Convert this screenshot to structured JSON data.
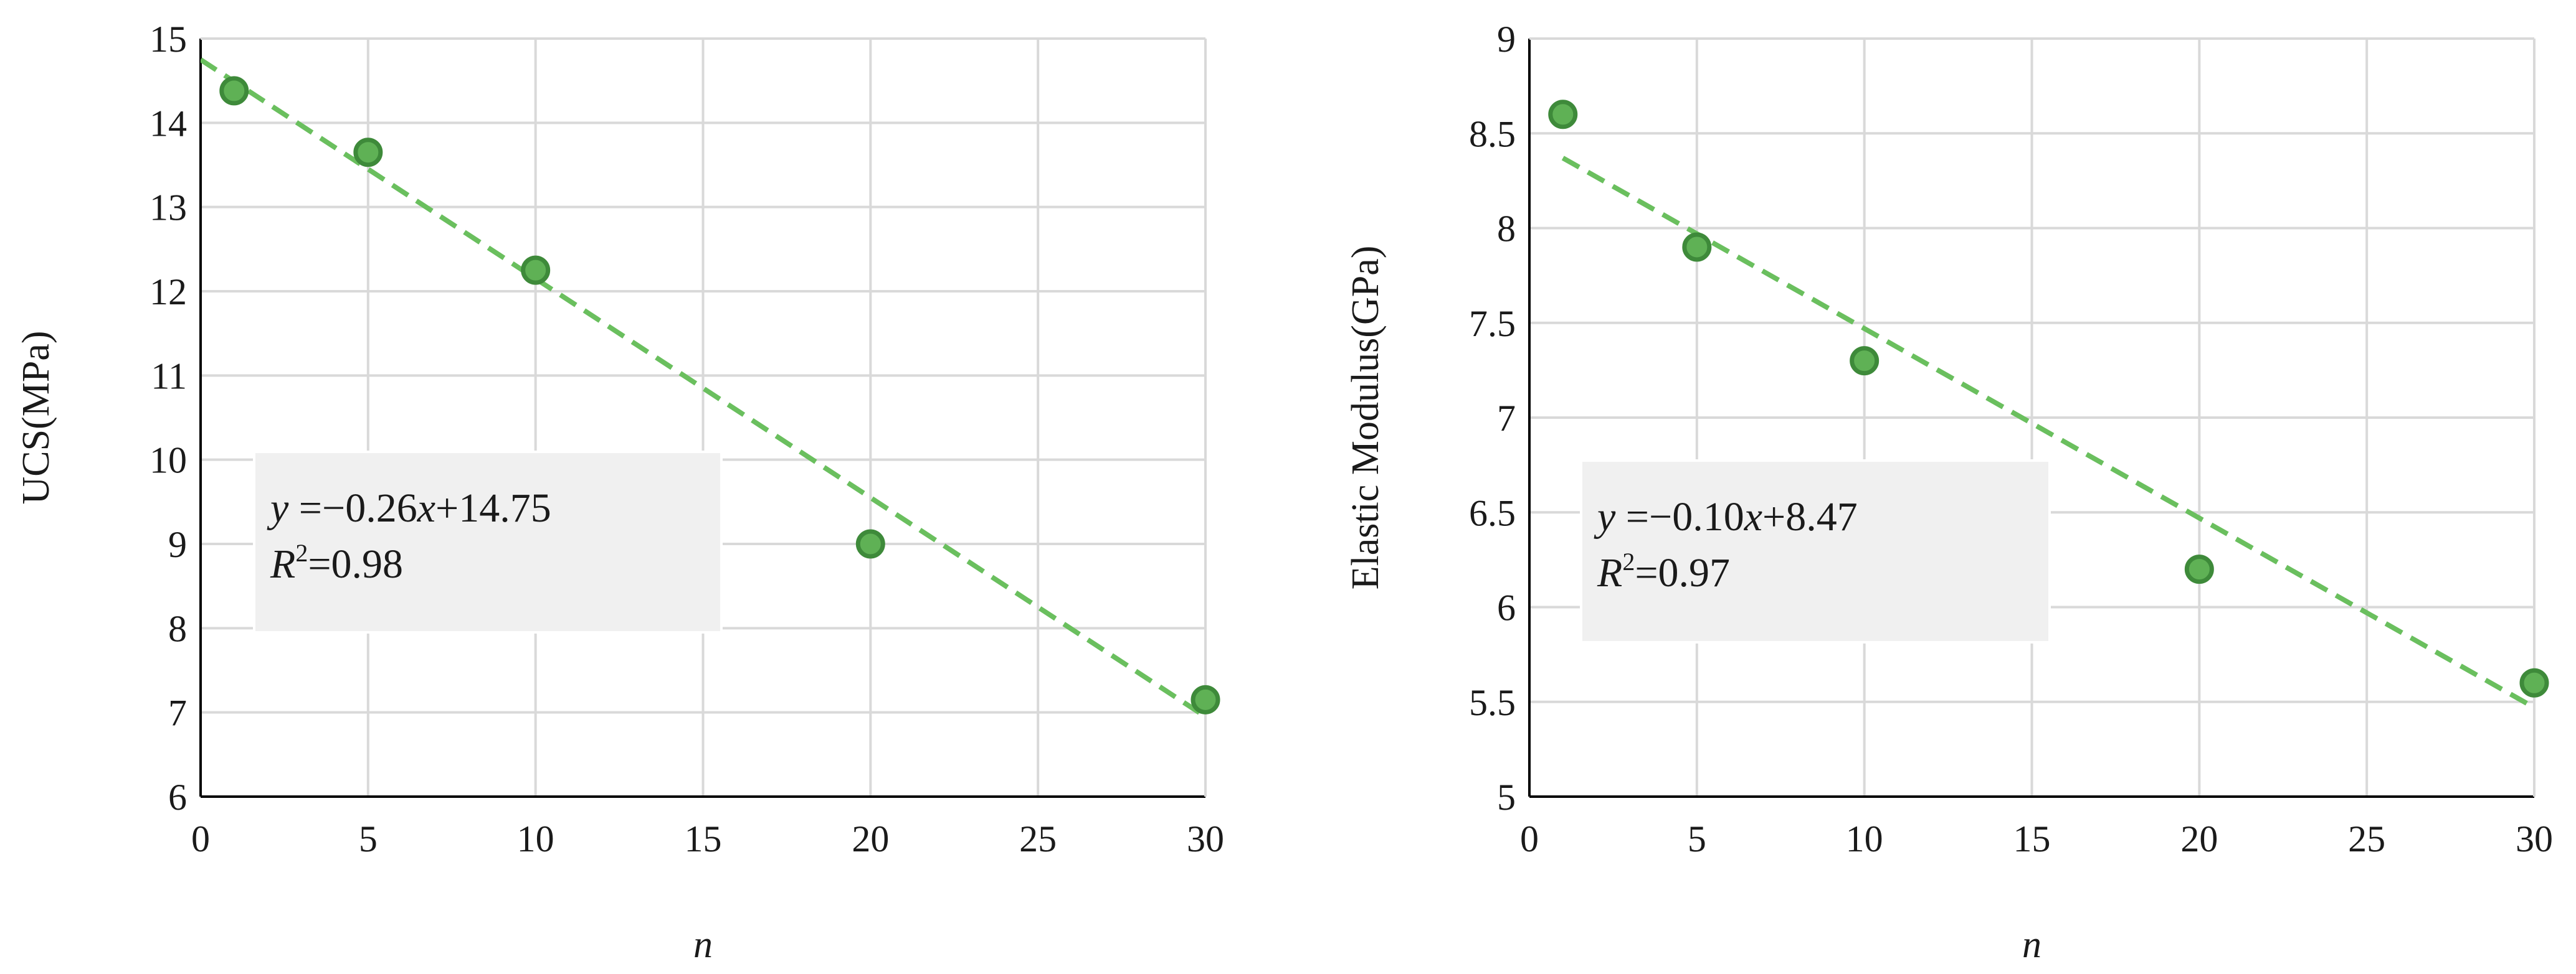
{
  "chart_data": [
    {
      "type": "scatter",
      "xlabel": "n",
      "ylabel": "UCS(MPa)",
      "xlim": [
        0,
        30
      ],
      "ylim": [
        6,
        15
      ],
      "xticks": [
        "0",
        "5",
        "10",
        "15",
        "20",
        "25",
        "30"
      ],
      "yticks": [
        "6",
        "7",
        "8",
        "9",
        "10",
        "11",
        "12",
        "13",
        "14",
        "15"
      ],
      "grid": true,
      "series": [
        {
          "x": [
            1,
            5,
            10,
            20,
            30
          ],
          "y": [
            14.38,
            13.65,
            12.25,
            9.0,
            7.15
          ],
          "color": "#5fb155"
        }
      ],
      "fit": {
        "slope": -0.26,
        "intercept": 14.75,
        "x_range": [
          0,
          30
        ],
        "color": "#6abf5e"
      },
      "annotation": {
        "equation": "y =−0.26x+14.75",
        "r2": "R²=0.98",
        "placement": "left-middle"
      }
    },
    {
      "type": "scatter",
      "xlabel": "n",
      "ylabel": "Elastic Modulus(GPa)",
      "xlim": [
        0,
        30
      ],
      "ylim": [
        5,
        9
      ],
      "xticks": [
        "0",
        "5",
        "10",
        "15",
        "20",
        "25",
        "30"
      ],
      "yticks": [
        "5",
        "5.5",
        "6",
        "6.5",
        "7",
        "7.5",
        "8",
        "8.5",
        "9"
      ],
      "grid": true,
      "series": [
        {
          "x": [
            1,
            5,
            10,
            20,
            30
          ],
          "y": [
            8.6,
            7.9,
            7.3,
            6.2,
            5.6
          ],
          "color": "#5fb155"
        }
      ],
      "fit": {
        "slope": -0.1,
        "intercept": 8.47,
        "x_range": [
          1,
          30
        ],
        "color": "#6abf5e"
      },
      "annotation": {
        "equation": "y =−0.10x+8.47",
        "r2": "R²=0.97",
        "placement": "left-middle"
      }
    }
  ]
}
